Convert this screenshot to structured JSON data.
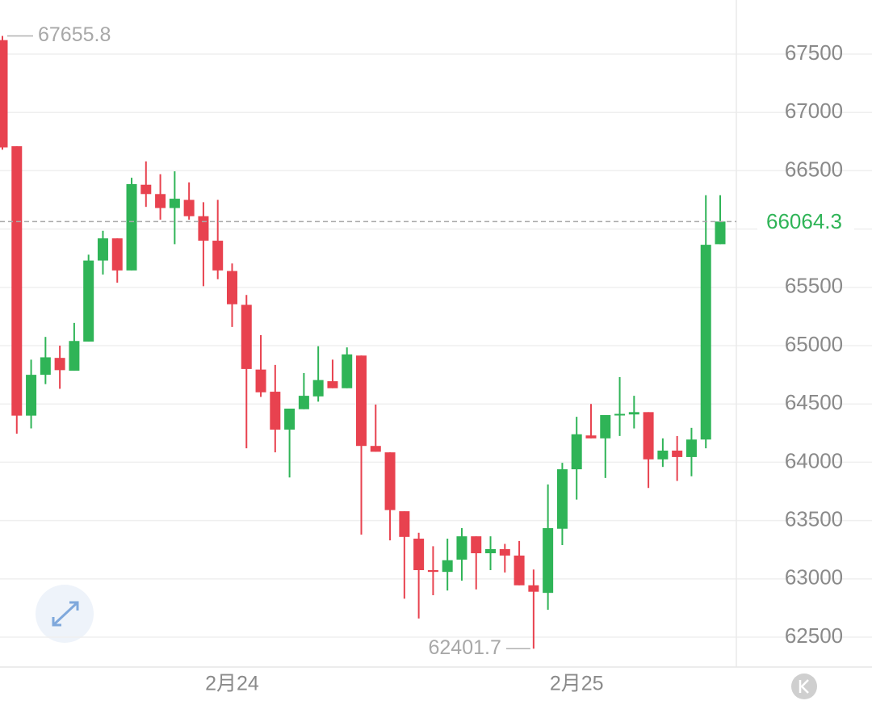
{
  "chart_data": {
    "type": "candlestick",
    "categories": [
      null,
      null,
      null,
      null,
      null,
      null,
      null,
      null,
      null,
      null,
      null,
      null,
      null,
      null,
      null,
      null,
      "2月24",
      null,
      null,
      null,
      null,
      null,
      null,
      null,
      null,
      null,
      null,
      null,
      null,
      null,
      null,
      null,
      null,
      null,
      null,
      null,
      null,
      null,
      null,
      null,
      "2月25",
      null,
      null,
      null,
      null,
      null,
      null,
      null,
      null,
      null,
      null
    ],
    "open": [
      67620,
      66710,
      64400,
      64750,
      64895,
      64785,
      65035,
      65730,
      65920,
      65645,
      66380,
      66300,
      66180,
      66250,
      66110,
      65900,
      65640,
      65350,
      64795,
      64605,
      64280,
      64455,
      64565,
      64695,
      64635,
      64915,
      64140,
      64085,
      63580,
      63345,
      63075,
      63060,
      63165,
      63365,
      63220,
      63255,
      63200,
      62945,
      62880,
      63430,
      63940,
      64230,
      64205,
      64405,
      64410,
      64430,
      64025,
      64100,
      64045,
      64195,
      65870
    ],
    "high": [
      67655.8,
      66710,
      64880,
      65075,
      65000,
      65195,
      65780,
      65985,
      65920,
      66440,
      66580,
      66470,
      66495,
      66400,
      66230,
      66250,
      65705,
      65435,
      65090,
      64835,
      64460,
      64765,
      64995,
      64880,
      64985,
      64915,
      64495,
      64085,
      63580,
      63395,
      63280,
      63345,
      63435,
      63365,
      63365,
      63300,
      63325,
      63080,
      63810,
      63995,
      64390,
      64500,
      64405,
      64730,
      64570,
      64430,
      64205,
      64225,
      64295,
      66290,
      66290
    ],
    "low": [
      66680,
      64245,
      64290,
      64670,
      64630,
      64785,
      65035,
      65610,
      65540,
      65645,
      66190,
      66080,
      65870,
      66080,
      65510,
      65570,
      65160,
      64120,
      64560,
      64085,
      63870,
      64455,
      64520,
      64635,
      64635,
      63380,
      64090,
      63330,
      62830,
      62660,
      62860,
      62900,
      62985,
      62910,
      63075,
      63055,
      62945,
      62401.7,
      62735,
      63290,
      63680,
      64205,
      63865,
      64225,
      64290,
      63780,
      63960,
      63840,
      63880,
      64120,
      65870
    ],
    "close": [
      66700,
      64400,
      64750,
      64900,
      64790,
      65040,
      65730,
      65920,
      65645,
      66385,
      66300,
      66180,
      66260,
      66110,
      65900,
      65645,
      65355,
      64800,
      64600,
      64280,
      64460,
      64570,
      64705,
      64635,
      64925,
      64140,
      64090,
      63590,
      63360,
      63075,
      63060,
      63160,
      63365,
      63220,
      63255,
      63200,
      62945,
      62890,
      63435,
      63940,
      64240,
      64205,
      64405,
      64415,
      64430,
      64025,
      64100,
      64045,
      64195,
      65865,
      66064.3
    ],
    "up_color": "#2fb457",
    "down_color": "#e8424f",
    "ylim": [
      62244,
      67964
    ],
    "yticks": [
      62500,
      63000,
      63500,
      64000,
      64500,
      65000,
      65500,
      66000,
      66500,
      67000,
      67500
    ],
    "grid": true,
    "annotations": [
      67655.8,
      62401.7
    ],
    "last_price": 66064.3
  }
}
